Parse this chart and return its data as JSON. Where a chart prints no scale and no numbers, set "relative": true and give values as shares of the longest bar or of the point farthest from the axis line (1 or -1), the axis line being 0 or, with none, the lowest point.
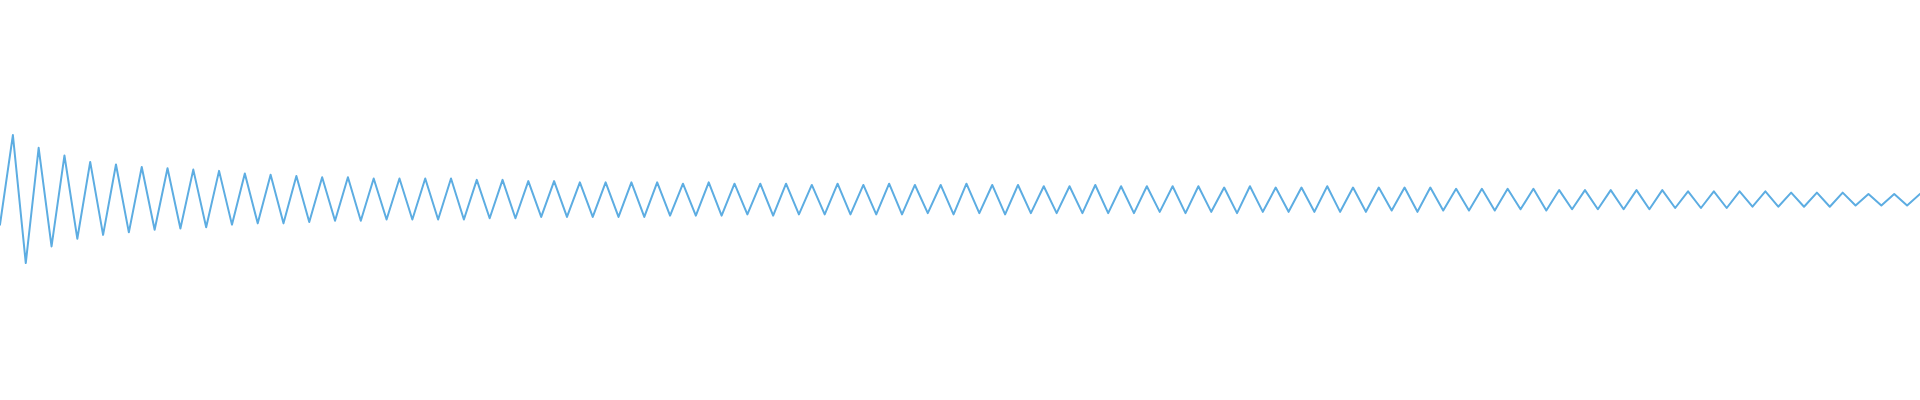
{
  "chart_data": {
    "type": "line",
    "relative": true,
    "categories": [
      null,
      null,
      null,
      null,
      null,
      null,
      null,
      null,
      null,
      null,
      null,
      null,
      null,
      null,
      null,
      null,
      null,
      null,
      null,
      null,
      null,
      null,
      null,
      null,
      null,
      null,
      null,
      null,
      null,
      null,
      null,
      null,
      null,
      null,
      null,
      null,
      null,
      null,
      null,
      null,
      null,
      null,
      null,
      null,
      null,
      null,
      null,
      null,
      null,
      null,
      null,
      null,
      null,
      null,
      null,
      null,
      null,
      null,
      null,
      null,
      null,
      null,
      null,
      null,
      null,
      null,
      null,
      null,
      null,
      null,
      null,
      null,
      null,
      null,
      null,
      null,
      null,
      null,
      null,
      null,
      null,
      null,
      null,
      null,
      null,
      null,
      null,
      null,
      null,
      null,
      null,
      null,
      null,
      null,
      null,
      null,
      null,
      null,
      null,
      null,
      null,
      null,
      null,
      null,
      null,
      null,
      null,
      null,
      null,
      null,
      null,
      null,
      null,
      null,
      null,
      null,
      null,
      null,
      null,
      null,
      null,
      null,
      null,
      null,
      null,
      null,
      null,
      null,
      null,
      null,
      null,
      null,
      null,
      null,
      null,
      null,
      null,
      null,
      null,
      null,
      null,
      null,
      null,
      null,
      null,
      null,
      null,
      null,
      null,
      null
    ],
    "series": [
      {
        "color": "#5dade2",
        "values": [
          0.3,
          1.0,
          0.0,
          0.9,
          0.13,
          0.84,
          0.19,
          0.79,
          0.22,
          0.77,
          0.24,
          0.75,
          0.26,
          0.74,
          0.27,
          0.73,
          0.28,
          0.72,
          0.3,
          0.7,
          0.31,
          0.69,
          0.31,
          0.68,
          0.32,
          0.67,
          0.33,
          0.67,
          0.33,
          0.66,
          0.34,
          0.66,
          0.34,
          0.66,
          0.34,
          0.66,
          0.34,
          0.65,
          0.35,
          0.65,
          0.35,
          0.64,
          0.36,
          0.64,
          0.36,
          0.63,
          0.36,
          0.63,
          0.36,
          0.63,
          0.36,
          0.63,
          0.37,
          0.62,
          0.37,
          0.63,
          0.37,
          0.62,
          0.38,
          0.62,
          0.37,
          0.62,
          0.38,
          0.61,
          0.38,
          0.62,
          0.38,
          0.61,
          0.38,
          0.62,
          0.38,
          0.61,
          0.39,
          0.61,
          0.38,
          0.62,
          0.39,
          0.61,
          0.38,
          0.61,
          0.39,
          0.6,
          0.39,
          0.6,
          0.39,
          0.61,
          0.39,
          0.6,
          0.39,
          0.6,
          0.4,
          0.6,
          0.39,
          0.6,
          0.4,
          0.59,
          0.39,
          0.6,
          0.4,
          0.59,
          0.4,
          0.59,
          0.4,
          0.6,
          0.4,
          0.59,
          0.4,
          0.59,
          0.41,
          0.59,
          0.4,
          0.59,
          0.41,
          0.58,
          0.41,
          0.58,
          0.41,
          0.58,
          0.42,
          0.58,
          0.41,
          0.57,
          0.42,
          0.57,
          0.42,
          0.57,
          0.42,
          0.57,
          0.42,
          0.57,
          0.43,
          0.56,
          0.43,
          0.56,
          0.43,
          0.56,
          0.44,
          0.56,
          0.44,
          0.55,
          0.44,
          0.55,
          0.44,
          0.55,
          0.45,
          0.54,
          0.45,
          0.54,
          0.45,
          0.54
        ]
      }
    ]
  }
}
